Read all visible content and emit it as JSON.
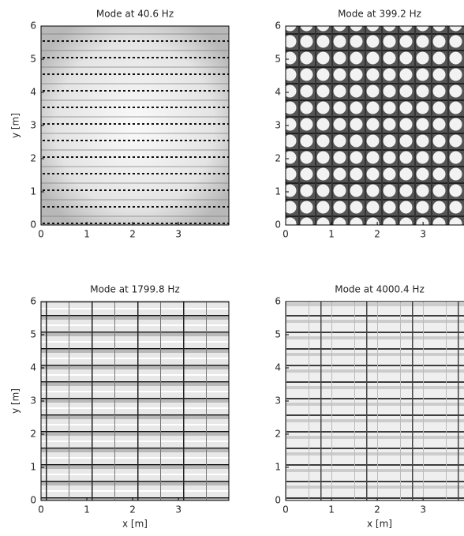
{
  "chart_data": [
    {
      "type": "heatmap",
      "title": "Mode at 40.6 Hz",
      "ylabel": "y [m]",
      "xlim": [
        0,
        4.1
      ],
      "ylim": [
        0,
        6
      ],
      "xticks": [
        0,
        1,
        2,
        3
      ],
      "yticks": [
        0,
        1,
        2,
        3,
        4,
        5,
        6
      ]
    },
    {
      "type": "heatmap",
      "title": "Mode at 399.2 Hz",
      "xlim": [
        0,
        4.1
      ],
      "ylim": [
        0,
        6
      ],
      "xticks": [
        0,
        1,
        2,
        3
      ],
      "yticks": [
        0,
        1,
        2,
        3,
        4,
        5,
        6
      ]
    },
    {
      "type": "heatmap",
      "title": "Mode at 1799.8 Hz",
      "xlabel": "x [m]",
      "ylabel": "y [m]",
      "xlim": [
        0,
        4.1
      ],
      "ylim": [
        0,
        6
      ],
      "xticks": [
        0,
        1,
        2,
        3
      ],
      "yticks": [
        0,
        1,
        2,
        3,
        4,
        5,
        6
      ]
    },
    {
      "type": "heatmap",
      "title": "Mode at 4000.4 Hz",
      "xlabel": "x [m]",
      "xlim": [
        0,
        4.1
      ],
      "ylim": [
        0,
        6
      ],
      "xticks": [
        0,
        1,
        2,
        3
      ],
      "yticks": [
        0,
        1,
        2,
        3,
        4,
        5,
        6
      ]
    }
  ]
}
